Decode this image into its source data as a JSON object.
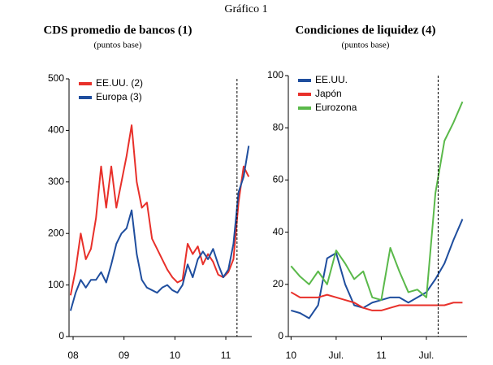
{
  "figure_title": "Gráfico 1",
  "chart_data": [
    {
      "type": "line",
      "title": "CDS promedio de bancos (1)",
      "subtitle": "(puntos base)",
      "x": [
        2007.95,
        2008.05,
        2008.15,
        2008.25,
        2008.35,
        2008.45,
        2008.55,
        2008.65,
        2008.75,
        2008.85,
        2008.95,
        2009.05,
        2009.15,
        2009.25,
        2009.35,
        2009.45,
        2009.55,
        2009.65,
        2009.75,
        2009.85,
        2009.95,
        2010.05,
        2010.15,
        2010.25,
        2010.35,
        2010.45,
        2010.55,
        2010.65,
        2010.75,
        2010.85,
        2010.95,
        2011.05,
        2011.15,
        2011.25,
        2011.35,
        2011.45
      ],
      "series": [
        {
          "name": "EE.UU. (2)",
          "color": "#e8302a",
          "values": [
            80,
            130,
            200,
            150,
            170,
            230,
            330,
            250,
            330,
            250,
            300,
            350,
            410,
            300,
            250,
            260,
            190,
            170,
            150,
            130,
            115,
            105,
            110,
            180,
            160,
            175,
            140,
            160,
            145,
            120,
            115,
            125,
            150,
            260,
            330,
            310
          ]
        },
        {
          "name": "Europa (3)",
          "color": "#1f4e9e",
          "values": [
            50,
            85,
            110,
            95,
            110,
            110,
            125,
            105,
            140,
            180,
            200,
            210,
            245,
            160,
            110,
            95,
            90,
            85,
            95,
            100,
            90,
            85,
            100,
            140,
            115,
            150,
            165,
            150,
            170,
            140,
            115,
            130,
            180,
            280,
            310,
            370
          ]
        }
      ],
      "xlim": [
        2007.92,
        2011.51
      ],
      "xticks": [
        {
          "value": 2008,
          "label": "08"
        },
        {
          "value": 2009,
          "label": "09"
        },
        {
          "value": 2010,
          "label": "10"
        },
        {
          "value": 2011,
          "label": "11"
        }
      ],
      "ylim": [
        0,
        500
      ],
      "yticks": [
        0,
        100,
        200,
        300,
        400,
        500
      ],
      "reference_line_x": 2011.22,
      "legend": "upper left"
    },
    {
      "type": "line",
      "title": "Condiciones de liquidez (4)",
      "subtitle": "(puntos base)",
      "x": [
        2010.0,
        2010.1,
        2010.2,
        2010.3,
        2010.4,
        2010.5,
        2010.6,
        2010.7,
        2010.8,
        2010.9,
        2011.0,
        2011.1,
        2011.2,
        2011.3,
        2011.4,
        2011.5,
        2011.6,
        2011.7,
        2011.8,
        2011.9
      ],
      "series": [
        {
          "name": "EE.UU.",
          "color": "#1f4e9e",
          "values": [
            10,
            9,
            7,
            12,
            30,
            32,
            20,
            12,
            11,
            13,
            14,
            15,
            15,
            13,
            15,
            17,
            22,
            28,
            37,
            45
          ]
        },
        {
          "name": "Japón",
          "color": "#e8302a",
          "values": [
            17,
            15,
            15,
            15,
            16,
            15,
            14,
            13,
            11,
            10,
            10,
            11,
            12,
            12,
            12,
            12,
            12,
            12,
            13,
            13
          ]
        },
        {
          "name": "Eurozona",
          "color": "#5ab94a",
          "values": [
            27,
            23,
            20,
            25,
            20,
            33,
            28,
            22,
            25,
            15,
            14,
            34,
            25,
            17,
            18,
            15,
            55,
            75,
            82,
            90
          ]
        }
      ],
      "xlim": [
        2009.97,
        2011.95
      ],
      "xticks": [
        {
          "value": 2010,
          "label": "10"
        },
        {
          "value": 2010.5,
          "label": "Jul."
        },
        {
          "value": 2011,
          "label": "11"
        },
        {
          "value": 2011.5,
          "label": "Jul."
        }
      ],
      "ylim": [
        0,
        100
      ],
      "yticks": [
        0,
        20,
        40,
        60,
        80,
        100
      ],
      "reference_line_x": 2011.63,
      "legend": "upper left"
    }
  ]
}
